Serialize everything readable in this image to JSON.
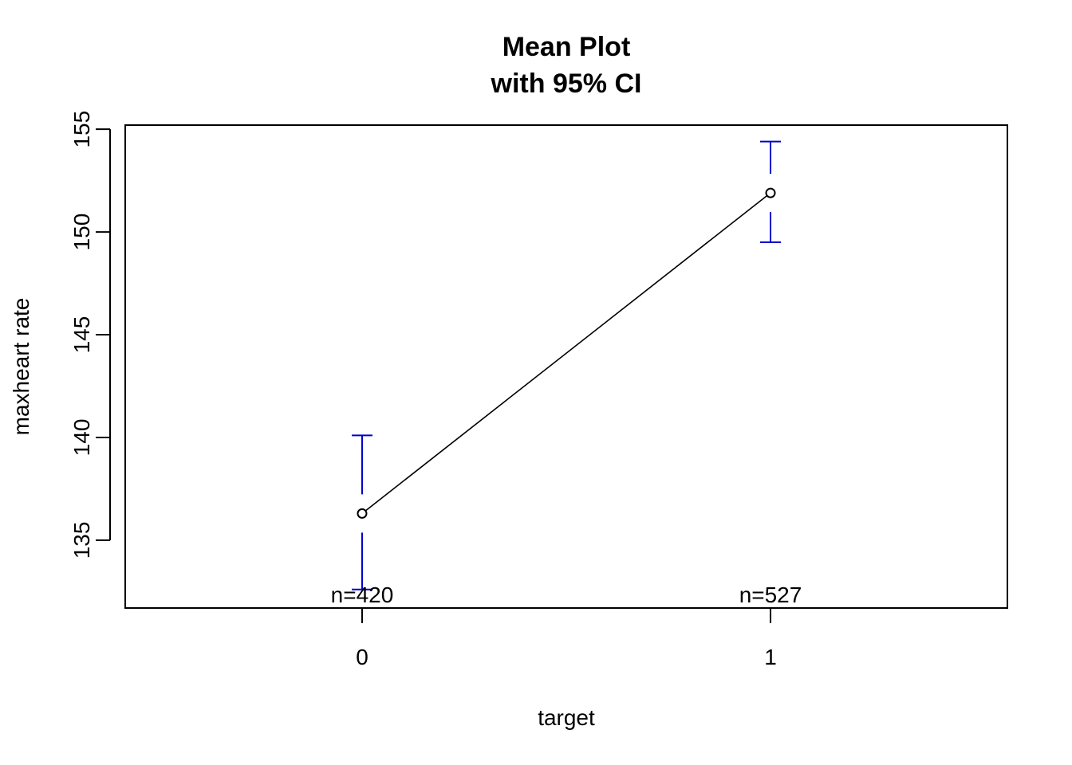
{
  "chart_data": {
    "type": "line",
    "title_line1": "Mean Plot",
    "title_line2": "with 95% CI",
    "xlabel": "target",
    "ylabel": "maxheart rate",
    "categories": [
      "0",
      "1"
    ],
    "means": [
      136.3,
      151.9
    ],
    "ci_lower": [
      132.6,
      149.5
    ],
    "ci_upper": [
      140.1,
      154.4
    ],
    "counts": [
      "n=420",
      "n=527"
    ],
    "yticks": [
      "135",
      "140",
      "145",
      "150",
      "155"
    ],
    "ylim": [
      131.7,
      155.2
    ],
    "xlim": [
      -0.58,
      1.58
    ],
    "grid": false,
    "colors": {
      "line": "#000000",
      "ci": "#0000CD",
      "point": "#000000"
    }
  }
}
